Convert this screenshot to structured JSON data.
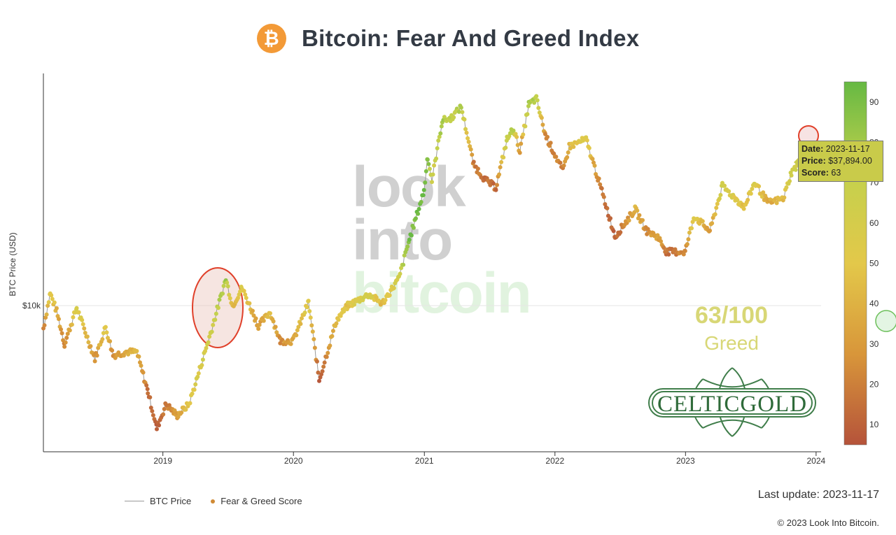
{
  "header": {
    "title": "Bitcoin: Fear And Greed Index",
    "logo_icon": "bitcoin-icon",
    "logo_glyph": "₿"
  },
  "watermark": {
    "line1": "look",
    "line2": "into",
    "line3": "bitcoin"
  },
  "current": {
    "score_text": "63/100",
    "label": "Greed",
    "color": "#d8d776"
  },
  "tooltip": {
    "date_label": "Date:",
    "date": "2023-11-17",
    "price_label": "Price:",
    "price": "$37,894.00",
    "score_label": "Score:",
    "score": "63"
  },
  "logo_text": "CELTICGOLD",
  "legend": {
    "price": "BTC Price",
    "score": "Fear & Greed Score"
  },
  "footer": {
    "last_update": "Last update: 2023-11-17",
    "copyright": "© 2023 Look Into Bitcoin."
  },
  "chart_data": {
    "type": "scatter",
    "ylabel": "BTC Price (USD)",
    "y_scale": "log",
    "y_ticks": [
      {
        "value": 10000,
        "label": "$10k"
      }
    ],
    "x_ticks": [
      "2019",
      "2020",
      "2021",
      "2022",
      "2023",
      "2024"
    ],
    "xlim": [
      "2018-02-01",
      "2024-01-15"
    ],
    "colorbar": {
      "ticks": [
        10,
        20,
        30,
        40,
        50,
        60,
        70,
        80,
        90
      ],
      "range": [
        5,
        95
      ],
      "colors": [
        "#b5533a",
        "#d8963a",
        "#e3c84a",
        "#c3d14c",
        "#66b943"
      ]
    },
    "series": [
      {
        "name": "BTC Price",
        "type": "line",
        "color": "#999999"
      },
      {
        "name": "Fear & Greed Score",
        "type": "scatter"
      }
    ],
    "points": [
      [
        "2018-02-01",
        8100,
        20
      ],
      [
        "2018-02-20",
        11200,
        55
      ],
      [
        "2018-03-10",
        9500,
        40
      ],
      [
        "2018-04-01",
        7000,
        20
      ],
      [
        "2018-05-05",
        9800,
        60
      ],
      [
        "2018-06-25",
        6100,
        25
      ],
      [
        "2018-07-25",
        8200,
        55
      ],
      [
        "2018-08-15",
        6300,
        25
      ],
      [
        "2018-09-20",
        6500,
        35
      ],
      [
        "2018-10-20",
        6500,
        40
      ],
      [
        "2018-11-20",
        4500,
        15
      ],
      [
        "2018-12-15",
        3200,
        10
      ],
      [
        "2019-01-10",
        4000,
        20
      ],
      [
        "2019-02-10",
        3600,
        30
      ],
      [
        "2019-03-15",
        4000,
        50
      ],
      [
        "2019-04-05",
        5000,
        55
      ],
      [
        "2019-05-15",
        7800,
        65
      ],
      [
        "2019-06-26",
        12800,
        80
      ],
      [
        "2019-07-15",
        10000,
        40
      ],
      [
        "2019-08-10",
        11800,
        55
      ],
      [
        "2019-09-25",
        8300,
        30
      ],
      [
        "2019-10-28",
        9400,
        45
      ],
      [
        "2019-11-25",
        7200,
        25
      ],
      [
        "2019-12-31",
        7200,
        35
      ],
      [
        "2020-02-12",
        10300,
        55
      ],
      [
        "2020-03-13",
        5000,
        10
      ],
      [
        "2020-04-30",
        8700,
        45
      ],
      [
        "2020-06-01",
        10000,
        50
      ],
      [
        "2020-07-30",
        11100,
        65
      ],
      [
        "2020-09-05",
        10200,
        40
      ],
      [
        "2020-10-22",
        12900,
        65
      ],
      [
        "2020-11-20",
        18500,
        90
      ],
      [
        "2020-12-31",
        29000,
        95
      ],
      [
        "2021-01-10",
        40000,
        90
      ],
      [
        "2021-01-22",
        32000,
        60
      ],
      [
        "2021-02-20",
        56000,
        80
      ],
      [
        "2021-03-15",
        57000,
        70
      ],
      [
        "2021-04-14",
        63500,
        75
      ],
      [
        "2021-05-19",
        37000,
        20
      ],
      [
        "2021-06-22",
        32000,
        15
      ],
      [
        "2021-07-20",
        30000,
        15
      ],
      [
        "2021-08-20",
        47000,
        70
      ],
      [
        "2021-09-07",
        52000,
        75
      ],
      [
        "2021-09-25",
        42000,
        25
      ],
      [
        "2021-10-20",
        65000,
        80
      ],
      [
        "2021-11-10",
        68500,
        75
      ],
      [
        "2021-12-05",
        49000,
        25
      ],
      [
        "2022-01-23",
        35000,
        20
      ],
      [
        "2022-02-10",
        44000,
        45
      ],
      [
        "2022-03-29",
        47000,
        55
      ],
      [
        "2022-05-12",
        29000,
        15
      ],
      [
        "2022-06-18",
        19000,
        10
      ],
      [
        "2022-08-13",
        24500,
        40
      ],
      [
        "2022-09-15",
        20000,
        25
      ],
      [
        "2022-10-15",
        19000,
        35
      ],
      [
        "2022-11-09",
        16500,
        15
      ],
      [
        "2022-12-31",
        16500,
        25
      ],
      [
        "2023-01-25",
        23000,
        55
      ],
      [
        "2023-03-10",
        20000,
        30
      ],
      [
        "2023-04-14",
        30400,
        65
      ],
      [
        "2023-06-15",
        25000,
        45
      ],
      [
        "2023-07-13",
        31400,
        60
      ],
      [
        "2023-08-20",
        26000,
        35
      ],
      [
        "2023-10-01",
        27000,
        45
      ],
      [
        "2023-10-24",
        34500,
        65
      ],
      [
        "2023-11-17",
        37894,
        63
      ]
    ]
  }
}
